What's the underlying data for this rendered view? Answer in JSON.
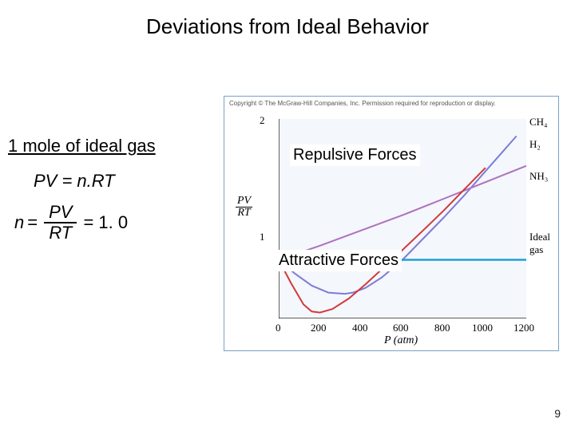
{
  "title": "Deviations from Ideal Behavior",
  "left": {
    "heading": "1 mole of ideal gas",
    "eq1": "PV = n.RT",
    "eq2_n": "n",
    "eq2_eq": "=",
    "frac_num": "PV",
    "frac_den": "RT",
    "eq2_val": "= 1. 0"
  },
  "overlays": {
    "repulsive": "Repulsive Forces",
    "attractive": "Attractive Forces"
  },
  "chart": {
    "type": "line",
    "copyright": "Copyright © The McGraw-Hill Companies, Inc. Permission required for reproduction or display.",
    "background_color": "#f4f7fb",
    "axis_color": "#000000",
    "x": {
      "label": "P (atm)",
      "min": 0,
      "max": 1200,
      "tick_step": 200,
      "ticks": [
        0,
        200,
        400,
        600,
        800,
        1000,
        1200
      ]
    },
    "y": {
      "label_num": "PV",
      "label_den": "RT",
      "min": 0.5,
      "max": 2.2,
      "ticks": [
        1.0,
        2.0
      ]
    },
    "series": [
      {
        "name": "CH4",
        "label": "CH₄",
        "color": "#7c7cda",
        "width": 2,
        "points": [
          [
            0,
            1.0
          ],
          [
            80,
            0.88
          ],
          [
            160,
            0.78
          ],
          [
            240,
            0.72
          ],
          [
            320,
            0.71
          ],
          [
            360,
            0.72
          ],
          [
            420,
            0.76
          ],
          [
            500,
            0.85
          ],
          [
            600,
            1.0
          ],
          [
            700,
            1.18
          ],
          [
            800,
            1.36
          ],
          [
            900,
            1.55
          ],
          [
            1000,
            1.75
          ],
          [
            1100,
            1.95
          ],
          [
            1150,
            2.05
          ]
        ]
      },
      {
        "name": "H2",
        "label": "H₂",
        "color": "#b070c0",
        "width": 2,
        "points": [
          [
            0,
            1.0
          ],
          [
            200,
            1.12
          ],
          [
            400,
            1.25
          ],
          [
            600,
            1.38
          ],
          [
            800,
            1.52
          ],
          [
            1000,
            1.66
          ],
          [
            1200,
            1.8
          ]
        ]
      },
      {
        "name": "NH3",
        "label": "NH₃",
        "color": "#d03a3a",
        "width": 2,
        "points": [
          [
            0,
            1.0
          ],
          [
            60,
            0.8
          ],
          [
            120,
            0.62
          ],
          [
            160,
            0.56
          ],
          [
            200,
            0.55
          ],
          [
            260,
            0.58
          ],
          [
            340,
            0.67
          ],
          [
            420,
            0.79
          ],
          [
            500,
            0.92
          ],
          [
            580,
            1.05
          ],
          [
            700,
            1.25
          ],
          [
            800,
            1.42
          ],
          [
            900,
            1.6
          ],
          [
            1000,
            1.78
          ]
        ]
      },
      {
        "name": "Ideal",
        "label": "Ideal gas",
        "color": "#1f9fd6",
        "width": 2.5,
        "points": [
          [
            0,
            1.0
          ],
          [
            1200,
            1.0
          ]
        ]
      }
    ]
  },
  "page_number": "9"
}
